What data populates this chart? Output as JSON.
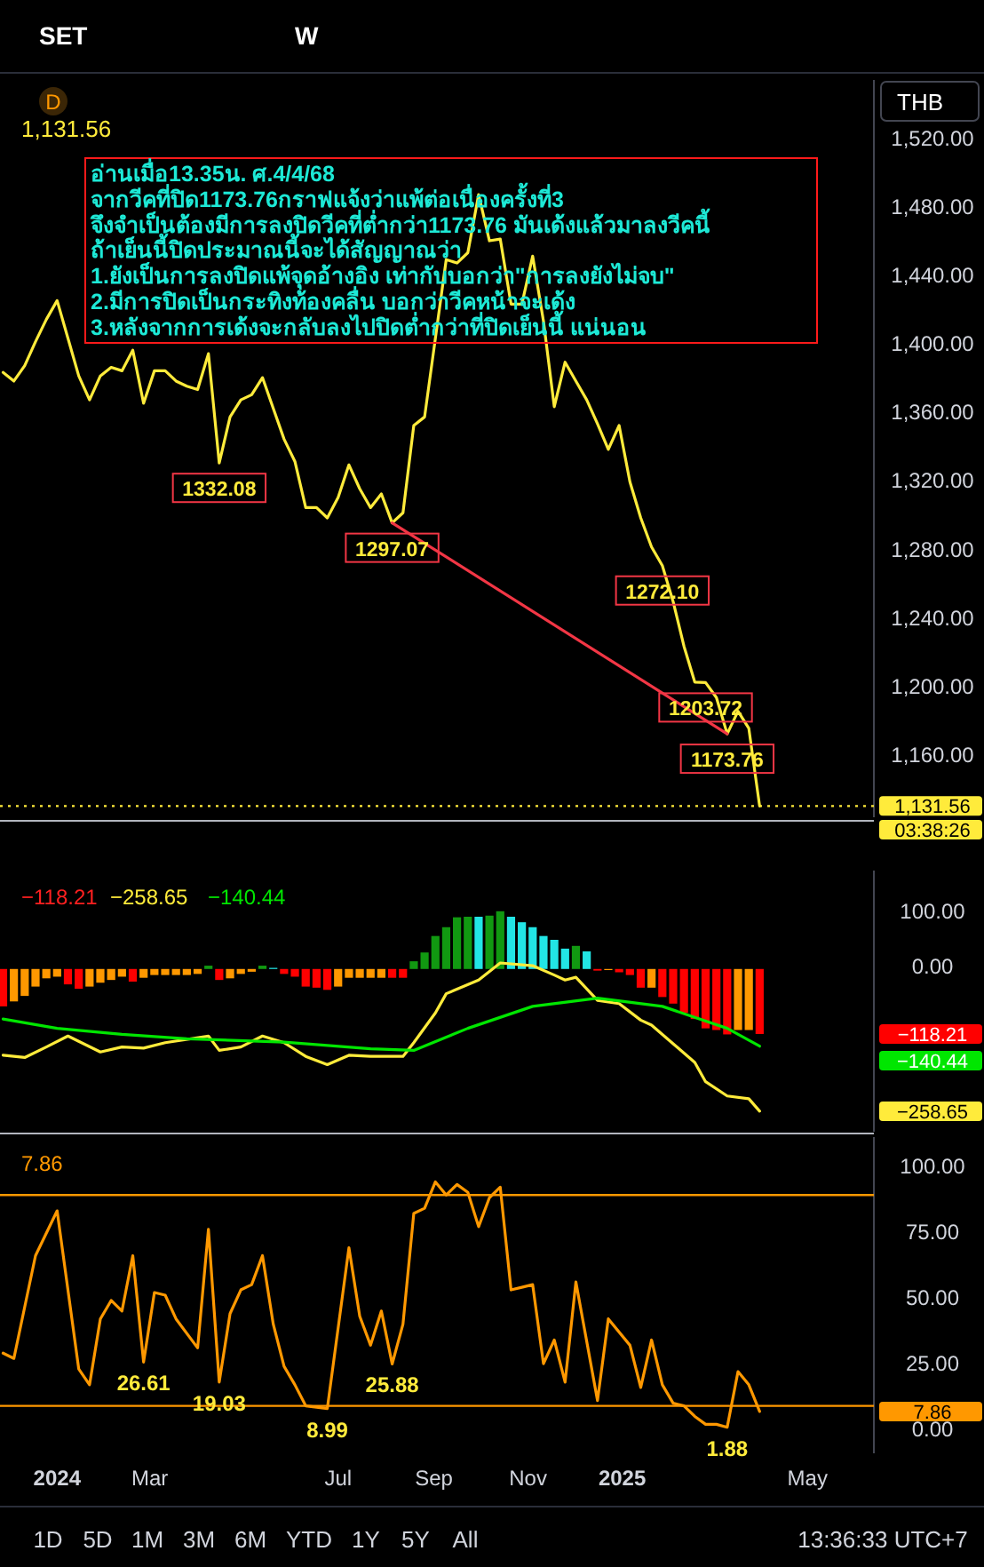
{
  "chart_data": [
    {
      "type": "line",
      "xlim": [
        "2023-11-25",
        "2025-06-13"
      ],
      "ylim": [
        1125,
        1556
      ],
      "tick_labels": "y",
      "yticks": [
        {
          "value": 1520,
          "label": "1,520.00"
        },
        {
          "value": 1480,
          "label": "1,480.00"
        },
        {
          "value": 1440,
          "label": "1,440.00"
        },
        {
          "value": 1400,
          "label": "1,400.00"
        },
        {
          "value": 1360,
          "label": "1,360.00"
        },
        {
          "value": 1320,
          "label": "1,320.00"
        },
        {
          "value": 1280,
          "label": "1,280.00"
        },
        {
          "value": 1240,
          "label": "1,240.00"
        },
        {
          "value": 1200,
          "label": "1,200.00"
        },
        {
          "value": 1160,
          "label": "1,160.00"
        }
      ],
      "x": [
        "2023-11-27",
        "2023-12-04",
        "2023-12-11",
        "2023-12-18",
        "2023-12-25",
        "2024-01-01",
        "2024-01-08",
        "2024-01-15",
        "2024-01-22",
        "2024-01-29",
        "2024-02-05",
        "2024-02-12",
        "2024-02-19",
        "2024-02-26",
        "2024-03-04",
        "2024-03-11",
        "2024-03-18",
        "2024-03-25",
        "2024-04-01",
        "2024-04-08",
        "2024-04-15",
        "2024-04-22",
        "2024-04-29",
        "2024-05-06",
        "2024-05-13",
        "2024-05-20",
        "2024-05-27",
        "2024-06-03",
        "2024-06-10",
        "2024-06-17",
        "2024-06-24",
        "2024-07-01",
        "2024-07-08",
        "2024-07-15",
        "2024-07-22",
        "2024-07-29",
        "2024-08-05",
        "2024-08-12",
        "2024-08-19",
        "2024-08-26",
        "2024-09-02",
        "2024-09-09",
        "2024-09-16",
        "2024-09-23",
        "2024-09-30",
        "2024-10-07",
        "2024-10-14",
        "2024-10-21",
        "2024-10-28",
        "2024-11-04",
        "2024-11-11",
        "2024-11-18",
        "2024-11-25",
        "2024-12-02",
        "2024-12-09",
        "2024-12-16",
        "2024-12-23",
        "2024-12-30",
        "2025-01-06",
        "2025-01-13",
        "2025-01-20",
        "2025-01-27",
        "2025-02-03",
        "2025-02-10",
        "2025-02-17",
        "2025-02-24",
        "2025-03-03",
        "2025-03-10",
        "2025-03-17",
        "2025-03-24",
        "2025-03-31"
      ],
      "series": [
        {
          "color": "#ffeb3b",
          "values": [
            1385,
            1380,
            1389,
            1403,
            1416,
            1427,
            1405,
            1383,
            1369,
            1383,
            1388,
            1386,
            1398,
            1367,
            1386,
            1386,
            1380,
            1377,
            1375,
            1396,
            1332.08,
            1359,
            1369,
            1372,
            1382,
            1364,
            1346,
            1333,
            1306,
            1306,
            1300,
            1312,
            1331,
            1317,
            1306,
            1314,
            1297.07,
            1303,
            1354,
            1359,
            1405,
            1451,
            1449,
            1455,
            1489,
            1462,
            1463,
            1425,
            1425,
            1453,
            1415,
            1365,
            1391,
            1380,
            1369,
            1355,
            1340,
            1354,
            1321,
            1300,
            1283,
            1272.1,
            1251,
            1225,
            1204,
            1203.72,
            1195,
            1173.76,
            1187,
            1177,
            1131.56
          ],
          "value_labels": [
            null,
            null,
            null,
            null,
            null,
            null,
            null,
            null,
            null,
            null,
            null,
            null,
            null,
            null,
            null,
            null,
            null,
            null,
            null,
            null,
            "1332.08",
            null,
            null,
            null,
            null,
            null,
            null,
            null,
            null,
            null,
            null,
            null,
            null,
            null,
            null,
            null,
            "1297.07",
            null,
            null,
            null,
            null,
            null,
            null,
            null,
            null,
            null,
            null,
            null,
            null,
            null,
            null,
            null,
            null,
            null,
            null,
            null,
            null,
            null,
            null,
            null,
            null,
            "1272.10",
            null,
            null,
            null,
            "1203.72",
            null,
            "1173.76",
            null,
            null,
            null
          ]
        },
        {
          "type": "line",
          "color": "#f23645",
          "x": [
            "2024-08-05",
            "2025-03-10"
          ],
          "values": [
            1297.07,
            1173.76
          ]
        }
      ],
      "ref_lines": [
        {
          "axis": "y",
          "value": 1131.56,
          "label": "1,131.56",
          "color": "#ffeb3b",
          "line_style": "dotted"
        }
      ],
      "annotations": [
        "SET",
        "W",
        "D",
        "1,131.56",
        "THB",
        "อ่านเมื่อ13.35น. ศ.4/4/68\nจากวีคที่ปิด1173.76กราฟแจ้งว่าแพ้ต่อเนื่องครั้งที่3\nจึงจำเป็นต้องมีการลงปิดวีคที่ต่ำกว่า1173.76 มันเด้งแล้วมาลงวีคนี้\nถ้าเย็นนี้ปิดประมาณนี้จะได้สัญญาณว่า\n1.ยังเป็นการลงปิดแพ้จุดอ้างอิง เท่ากับบอกว่า\"การลงยังไม่จบ\"\n2.มีการปิดเป็นกระทิงท้องคลื่น บอกว่าวีคหน้าจะเด้ง\n3.หลังจากการเด้งจะกลับลงไปปิดต่ำกว่าที่ปิดเย็นนี้ แน่นอน",
        "03:38:26"
      ]
    },
    {
      "type": "bar",
      "xlim": [
        "2023-11-25",
        "2025-06-13"
      ],
      "ylim": [
        -296,
        179
      ],
      "tick_labels": "y",
      "yticks": [
        {
          "value": 100,
          "label": "100.00"
        },
        {
          "value": 0,
          "label": "0.00"
        }
      ],
      "x": [
        "2023-11-27",
        "2023-12-04",
        "2023-12-11",
        "2023-12-18",
        "2023-12-25",
        "2024-01-01",
        "2024-01-08",
        "2024-01-15",
        "2024-01-22",
        "2024-01-29",
        "2024-02-05",
        "2024-02-12",
        "2024-02-19",
        "2024-02-26",
        "2024-03-04",
        "2024-03-11",
        "2024-03-18",
        "2024-03-25",
        "2024-04-01",
        "2024-04-08",
        "2024-04-15",
        "2024-04-22",
        "2024-04-29",
        "2024-05-06",
        "2024-05-13",
        "2024-05-20",
        "2024-05-27",
        "2024-06-03",
        "2024-06-10",
        "2024-06-17",
        "2024-06-24",
        "2024-07-01",
        "2024-07-08",
        "2024-07-15",
        "2024-07-22",
        "2024-07-29",
        "2024-08-05",
        "2024-08-12",
        "2024-08-19",
        "2024-08-26",
        "2024-09-02",
        "2024-09-09",
        "2024-09-16",
        "2024-09-23",
        "2024-09-30",
        "2024-10-07",
        "2024-10-14",
        "2024-10-21",
        "2024-10-28",
        "2024-11-04",
        "2024-11-11",
        "2024-11-18",
        "2024-11-25",
        "2024-12-02",
        "2024-12-09",
        "2024-12-16",
        "2024-12-23",
        "2024-12-30",
        "2025-01-06",
        "2025-01-13",
        "2025-01-20",
        "2025-01-27",
        "2025-02-03",
        "2025-02-10",
        "2025-02-17",
        "2025-02-24",
        "2025-03-03",
        "2025-03-10",
        "2025-03-17",
        "2025-03-24",
        "2025-03-31"
      ],
      "series": [
        {
          "values": [
            -68,
            -59,
            -49,
            -32,
            -17,
            -14,
            -28,
            -36,
            -32,
            -25,
            -20,
            -14,
            -23,
            -16,
            -11,
            -11,
            -11,
            -11,
            -9,
            6,
            -20,
            -17,
            -9,
            -5,
            6,
            2,
            -9,
            -14,
            -32,
            -34,
            -38,
            -32,
            -16,
            -16,
            -16,
            -16,
            -16,
            -16,
            14,
            30,
            60,
            76,
            94,
            95,
            95,
            97,
            105,
            95,
            85,
            76,
            60,
            53,
            37,
            42,
            32,
            -3,
            -2,
            -6,
            -11,
            -34,
            -34,
            -51,
            -63,
            -80,
            -91,
            -108,
            -111,
            -119,
            -111,
            -111,
            -118.21
          ],
          "colors": [
            "#ff0000",
            "#ff9800",
            "#ff9800",
            "#ff9800",
            "#ff9800",
            "#ff9800",
            "#ff0000",
            "#ff0000",
            "#ff9800",
            "#ff9800",
            "#ff9800",
            "#ff9800",
            "#ff0000",
            "#ff9800",
            "#ff9800",
            "#ff9800",
            "#ff9800",
            "#ff9800",
            "#ff9800",
            "#119911",
            "#ff0000",
            "#ff9800",
            "#ff9800",
            "#ff9800",
            "#119911",
            "#22e5e5",
            "#ff0000",
            "#ff0000",
            "#ff0000",
            "#ff0000",
            "#ff0000",
            "#ff9800",
            "#ff9800",
            "#ff9800",
            "#ff9800",
            "#ff9800",
            "#ff0000",
            "#ff0000",
            "#119911",
            "#119911",
            "#119911",
            "#119911",
            "#119911",
            "#119911",
            "#22e5e5",
            "#119911",
            "#119911",
            "#22e5e5",
            "#22e5e5",
            "#22e5e5",
            "#22e5e5",
            "#22e5e5",
            "#22e5e5",
            "#119911",
            "#22e5e5",
            "#ff0000",
            "#ff9800",
            "#ff0000",
            "#ff0000",
            "#ff0000",
            "#ff9800",
            "#ff0000",
            "#ff0000",
            "#ff0000",
            "#ff0000",
            "#ff0000",
            "#ff0000",
            "#ff0000",
            "#ff9800",
            "#ff9800",
            "#ff0000"
          ]
        },
        {
          "type": "line",
          "color": "#ffeb3b",
          "x": [
            "2023-11-27",
            "2023-12-11",
            "2023-12-25",
            "2024-01-08",
            "2024-01-29",
            "2024-02-12",
            "2024-02-26",
            "2024-03-11",
            "2024-04-08",
            "2024-04-15",
            "2024-04-29",
            "2024-05-13",
            "2024-05-27",
            "2024-06-10",
            "2024-06-24",
            "2024-07-08",
            "2024-07-22",
            "2024-08-12",
            "2024-08-19",
            "2024-09-02",
            "2024-09-09",
            "2024-09-30",
            "2024-10-14",
            "2024-11-04",
            "2024-11-18",
            "2024-11-25",
            "2024-12-02",
            "2024-12-16",
            "2024-12-30",
            "2025-01-13",
            "2025-01-20",
            "2025-02-03",
            "2025-02-17",
            "2025-02-24",
            "2025-03-10",
            "2025-03-24",
            "2025-03-31"
          ],
          "values": [
            -157,
            -161,
            -142,
            -122,
            -151,
            -142,
            -144,
            -134,
            -122,
            -148,
            -142,
            -122,
            -134,
            -159,
            -174,
            -157,
            -159,
            -159,
            -134,
            -80,
            -45,
            -20,
            11,
            6,
            -11,
            -20,
            -15,
            -57,
            -63,
            -93,
            -102,
            -136,
            -170,
            -205,
            -231,
            -236,
            -258.65
          ]
        },
        {
          "type": "line",
          "color": "#00e600",
          "x": [
            "2023-11-27",
            "2024-01-01",
            "2024-02-12",
            "2024-03-25",
            "2024-05-27",
            "2024-07-22",
            "2024-08-19",
            "2024-09-23",
            "2024-11-04",
            "2024-12-16",
            "2025-01-27",
            "2025-03-10",
            "2025-03-31"
          ],
          "values": [
            -91,
            -108,
            -119,
            -127,
            -133,
            -145,
            -148,
            -108,
            -68,
            -53,
            -68,
            -108,
            -140.44
          ]
        }
      ],
      "annotations": [
        "−118.21",
        "−258.65",
        "−140.44",
        "−118.21",
        "−140.44",
        "−258.65"
      ]
    },
    {
      "type": "line",
      "xlim": [
        "2023-11-25",
        "2025-06-13"
      ],
      "ylim": [
        -8,
        112
      ],
      "xticks": [
        {
          "value": "2024-01-01",
          "label": "2024"
        },
        {
          "value": "2024-03-01",
          "label": "Mar"
        },
        {
          "value": "2024-07-01",
          "label": "Jul"
        },
        {
          "value": "2024-09-01",
          "label": "Sep"
        },
        {
          "value": "2024-11-01",
          "label": "Nov"
        },
        {
          "value": "2025-01-01",
          "label": "2025"
        },
        {
          "value": "2025-05-01",
          "label": "May"
        }
      ],
      "yticks": [
        {
          "value": 100,
          "label": "100.00"
        },
        {
          "value": 75,
          "label": "75.00"
        },
        {
          "value": 50,
          "label": "50.00"
        },
        {
          "value": 25,
          "label": "25.00"
        },
        {
          "value": 0,
          "label": "0.00"
        }
      ],
      "x": [
        "2023-11-27",
        "2023-12-04",
        "2023-12-18",
        "2024-01-01",
        "2024-01-15",
        "2024-01-22",
        "2024-01-29",
        "2024-02-05",
        "2024-02-12",
        "2024-02-19",
        "2024-02-26",
        "2024-03-04",
        "2024-03-11",
        "2024-03-18",
        "2024-04-01",
        "2024-04-08",
        "2024-04-15",
        "2024-04-22",
        "2024-04-29",
        "2024-05-06",
        "2024-05-13",
        "2024-05-20",
        "2024-05-27",
        "2024-06-03",
        "2024-06-10",
        "2024-06-24",
        "2024-07-08",
        "2024-07-15",
        "2024-07-22",
        "2024-07-29",
        "2024-08-05",
        "2024-08-12",
        "2024-08-19",
        "2024-08-26",
        "2024-09-02",
        "2024-09-09",
        "2024-09-16",
        "2024-09-23",
        "2024-09-30",
        "2024-10-07",
        "2024-10-14",
        "2024-10-21",
        "2024-10-28",
        "2024-11-04",
        "2024-11-11",
        "2024-11-18",
        "2024-11-25",
        "2024-12-02",
        "2024-12-16",
        "2024-12-23",
        "2025-01-06",
        "2025-01-13",
        "2025-01-20",
        "2025-01-27",
        "2025-02-03",
        "2025-02-10",
        "2025-02-17",
        "2025-02-24",
        "2025-03-03",
        "2025-03-10",
        "2025-03-17",
        "2025-03-24",
        "2025-03-31"
      ],
      "series": [
        {
          "color": "#ff9800",
          "values": [
            30,
            28,
            67,
            84,
            24,
            18,
            43,
            50,
            46,
            67,
            26.61,
            53,
            52,
            43,
            32,
            77,
            19.03,
            45,
            54,
            56,
            67,
            41,
            25,
            18,
            10,
            8.99,
            70,
            44,
            33,
            46,
            25.88,
            41,
            83,
            85,
            95,
            90,
            94,
            91,
            78,
            89,
            93,
            54,
            55,
            56,
            26,
            35,
            19,
            57,
            12,
            43,
            33,
            17,
            35,
            18,
            11,
            10,
            6,
            3,
            3,
            1.88,
            23,
            18,
            7.86
          ],
          "value_labels": [
            null,
            null,
            null,
            null,
            null,
            null,
            null,
            null,
            null,
            null,
            "26.61",
            null,
            null,
            null,
            null,
            null,
            "19.03",
            null,
            null,
            null,
            null,
            null,
            null,
            null,
            null,
            "8.99",
            null,
            null,
            null,
            null,
            "25.88",
            null,
            null,
            null,
            null,
            null,
            null,
            null,
            null,
            null,
            null,
            null,
            null,
            null,
            null,
            null,
            null,
            null,
            null,
            null,
            null,
            null,
            null,
            null,
            null,
            null,
            null,
            null,
            null,
            "1.88",
            null,
            null,
            null
          ]
        }
      ],
      "ref_lines": [
        {
          "axis": "y",
          "value": 90,
          "color": "#ff9800",
          "line_style": "solid"
        },
        {
          "axis": "y",
          "value": 10,
          "color": "#ff9800",
          "line_style": "solid"
        }
      ],
      "annotations": [
        "7.86",
        "7.86",
        "1D",
        "5D",
        "1M",
        "3M",
        "6M",
        "YTD",
        "1Y",
        "5Y",
        "All",
        "13:36:33 UTC+7"
      ]
    }
  ]
}
